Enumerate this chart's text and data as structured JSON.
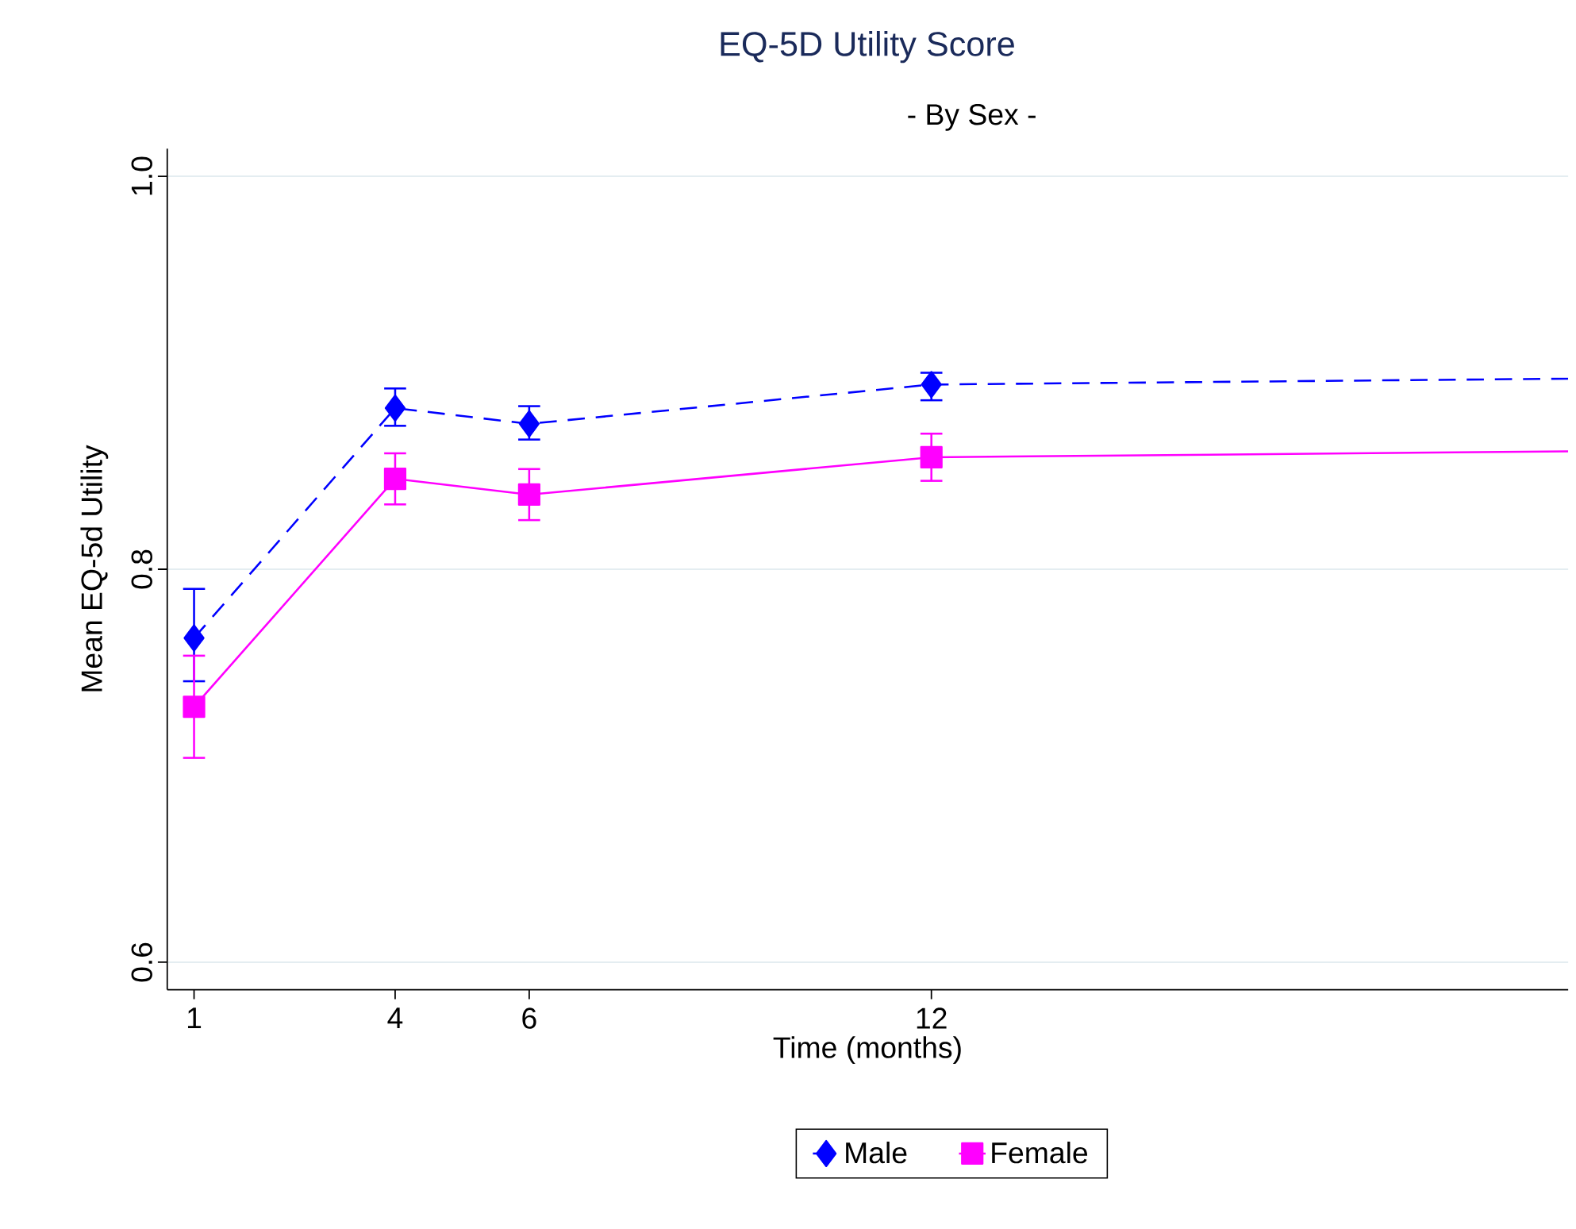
{
  "chart_data": {
    "type": "line",
    "title": "EQ-5D Utility Score",
    "subtitle": "- By Sex -",
    "xlabel": "Time (months)",
    "ylabel": "Mean EQ-5d Utility",
    "xlim": [
      0.6,
      21.5
    ],
    "xticks": [
      1,
      4,
      6,
      12
    ],
    "ylim": [
      0.586,
      1.014
    ],
    "yticks": [
      {
        "value": 0.6,
        "label": "0.6"
      },
      {
        "value": 0.8,
        "label": "0.8"
      },
      {
        "value": 1.0,
        "label": "1.0"
      }
    ],
    "grid": "y",
    "legend": "bottom",
    "series": [
      {
        "name": "Male",
        "color": "#0000ff",
        "marker": "diamond",
        "line_style": "dashed",
        "x": [
          1,
          4,
          6,
          12
        ],
        "values": [
          0.765,
          0.882,
          0.874,
          0.894
        ],
        "errors": [
          [
            0.743,
            0.79
          ],
          [
            0.873,
            0.892
          ],
          [
            0.866,
            0.883
          ],
          [
            0.886,
            0.9
          ]
        ]
      },
      {
        "name": "Female",
        "color": "#ff00ff",
        "marker": "square",
        "line_style": "solid",
        "x": [
          1,
          4,
          6,
          12
        ],
        "values": [
          0.73,
          0.846,
          0.838,
          0.857
        ],
        "errors": [
          [
            0.704,
            0.756
          ],
          [
            0.833,
            0.859
          ],
          [
            0.825,
            0.851
          ],
          [
            0.845,
            0.869
          ]
        ]
      },
      {
        "type": "line",
        "color": "#0000ff",
        "marker": "none",
        "line_style": "dashed",
        "x": [
          12,
          21.5
        ],
        "values": [
          0.894,
          0.897
        ]
      },
      {
        "type": "line",
        "color": "#ff00ff",
        "marker": "none",
        "line_style": "solid",
        "x": [
          12,
          21.5
        ],
        "values": [
          0.857,
          0.86
        ]
      }
    ]
  }
}
